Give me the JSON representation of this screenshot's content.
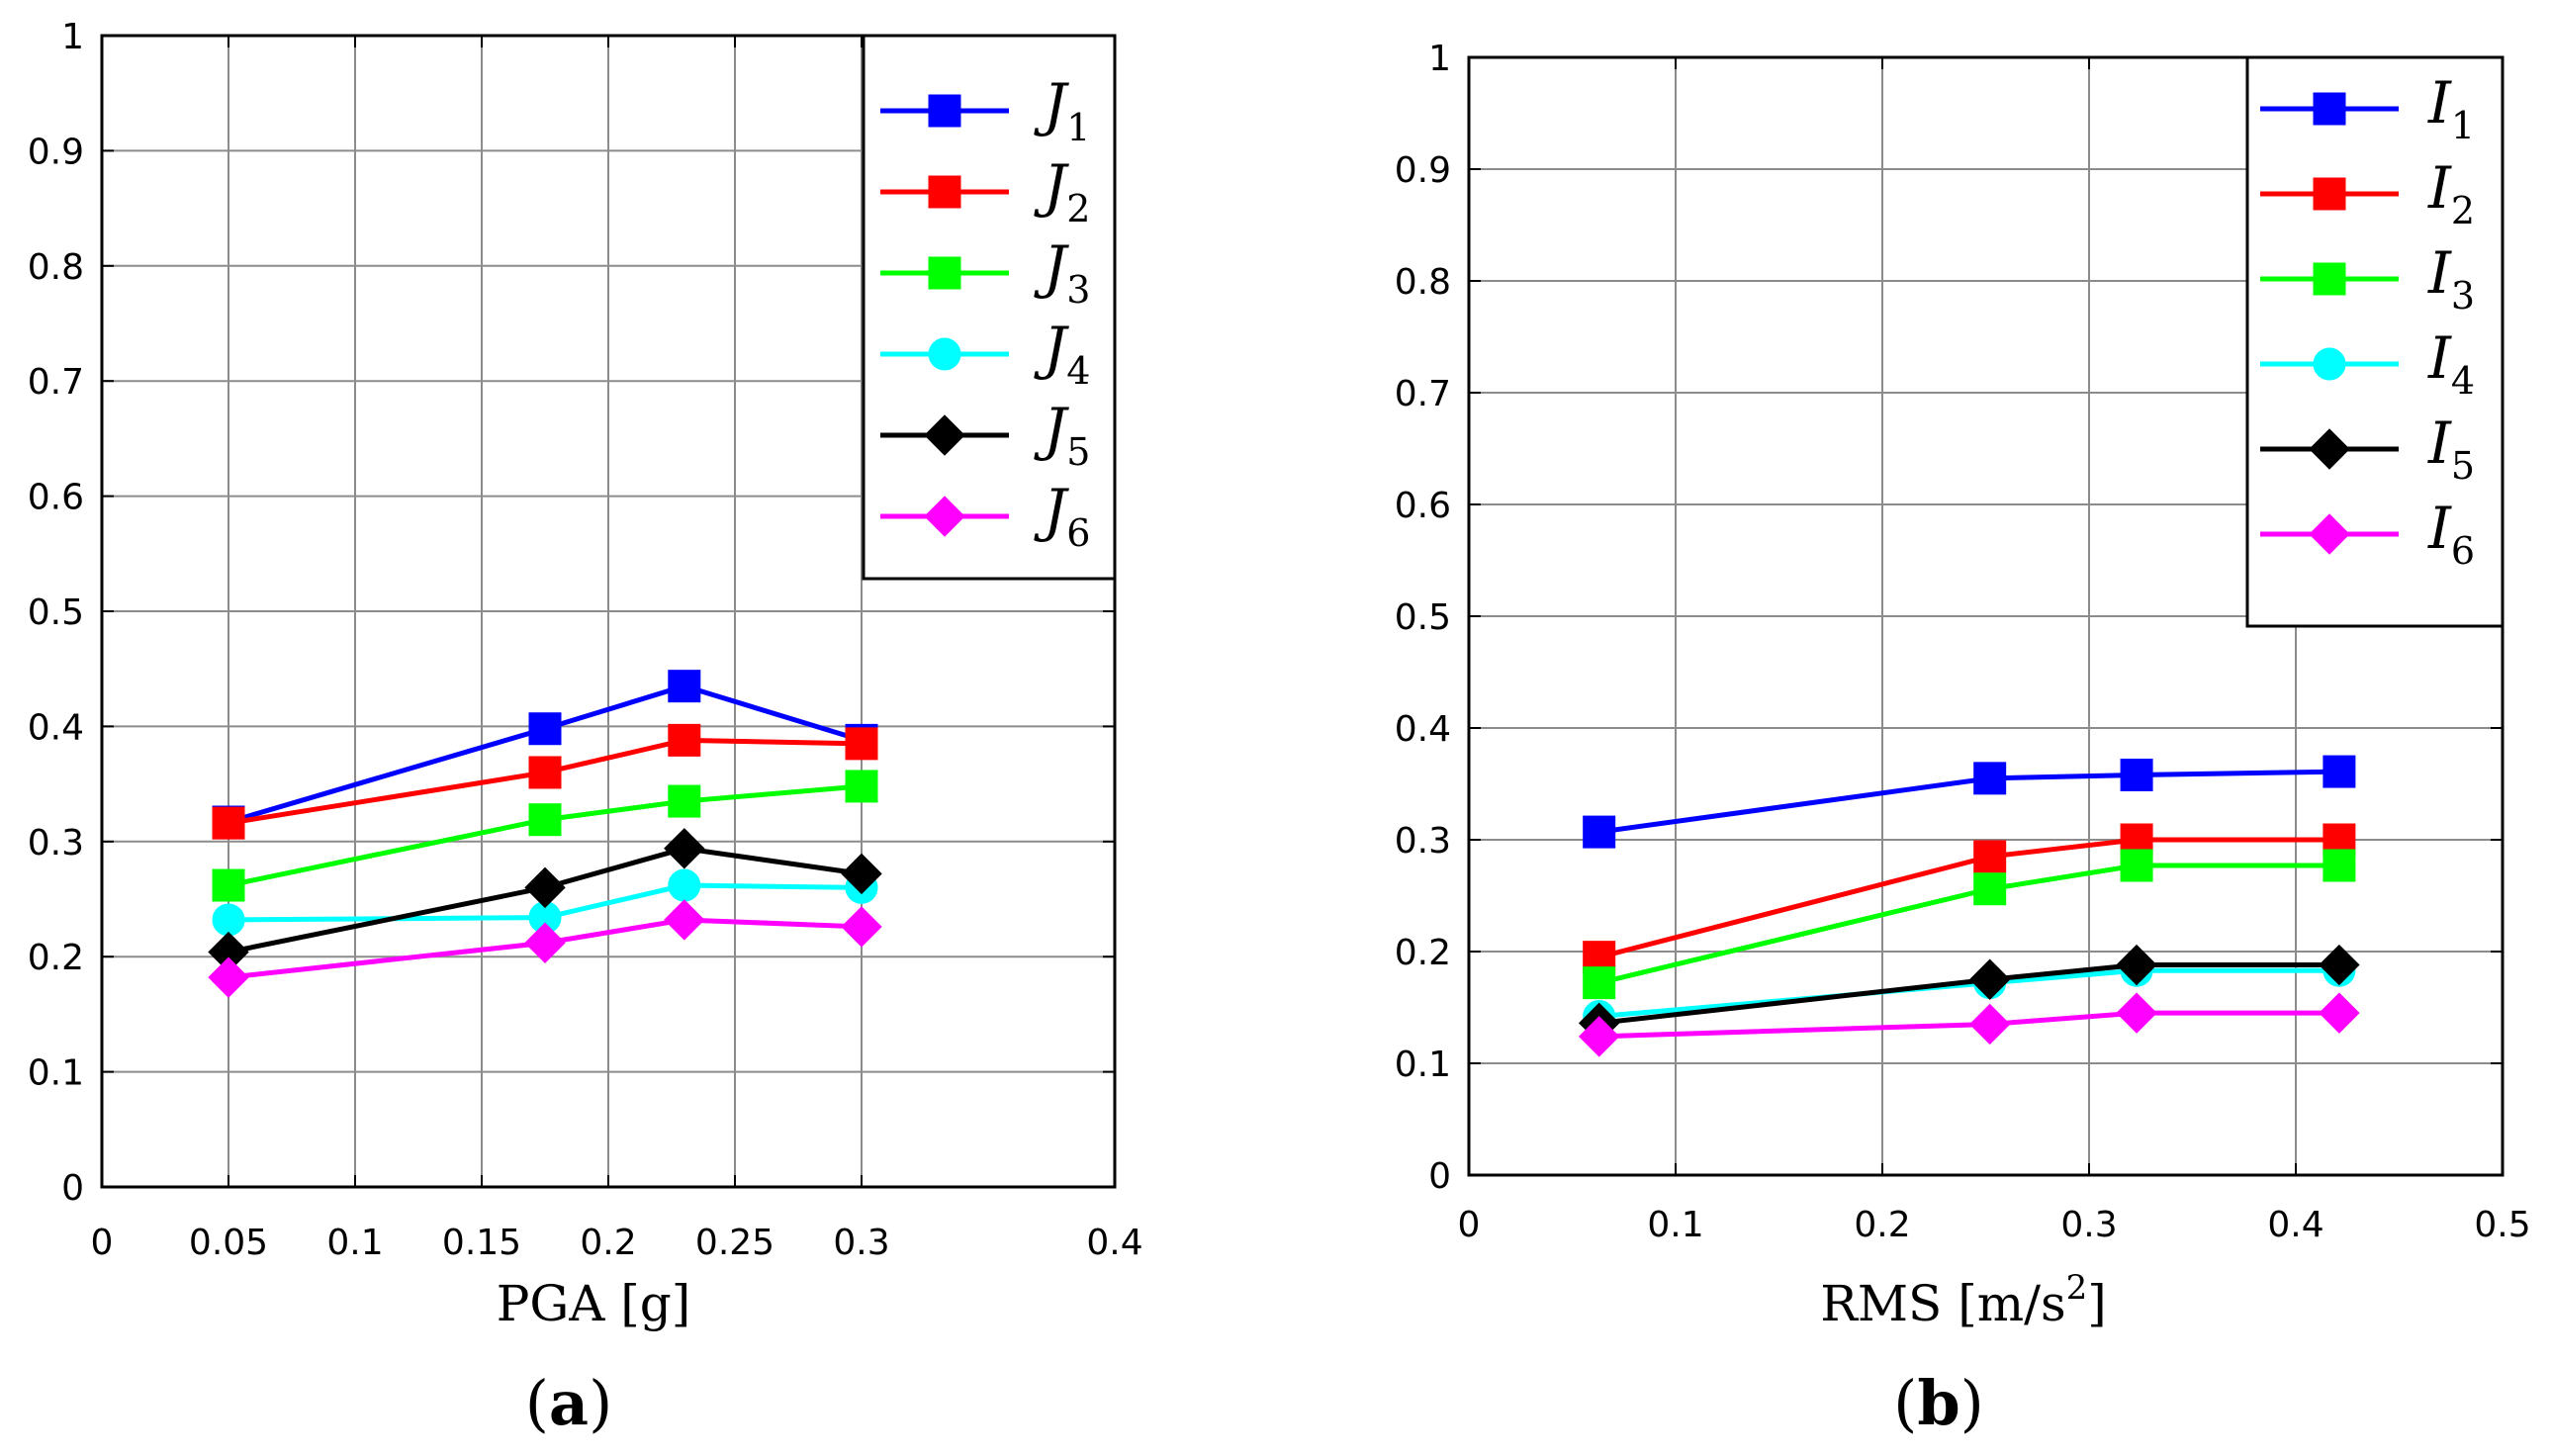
{
  "chart_data": [
    {
      "id": "a",
      "type": "line",
      "panel_label": {
        "open": "(",
        "letter": "a",
        "close": ")"
      },
      "xlabel": "PGA [g]",
      "ylabel": "",
      "xlim": [
        0,
        0.4
      ],
      "ylim": [
        0,
        1
      ],
      "xticks": [
        "0",
        "0.05",
        "0.1",
        "0.15",
        "0.2",
        "0.25",
        "0.3",
        "0.4"
      ],
      "xtick_values": [
        0,
        0.05,
        0.1,
        0.15,
        0.2,
        0.25,
        0.3,
        0.4
      ],
      "yticks": [
        "0",
        "0.1",
        "0.2",
        "0.3",
        "0.4",
        "0.5",
        "0.6",
        "0.7",
        "0.8",
        "0.9",
        "1"
      ],
      "ytick_values": [
        0,
        0.1,
        0.2,
        0.3,
        0.4,
        0.5,
        0.6,
        0.7,
        0.8,
        0.9,
        1
      ],
      "grid": true,
      "legend_position": "top-right",
      "x": [
        0.05,
        0.175,
        0.23,
        0.3
      ],
      "series": [
        {
          "name": "J",
          "sub": "1",
          "color": "#0000ff",
          "marker": "square",
          "values": [
            0.317,
            0.398,
            0.435,
            0.388
          ]
        },
        {
          "name": "J",
          "sub": "2",
          "color": "#ff0000",
          "marker": "square",
          "values": [
            0.316,
            0.36,
            0.388,
            0.385
          ]
        },
        {
          "name": "J",
          "sub": "3",
          "color": "#00ff00",
          "marker": "square",
          "values": [
            0.262,
            0.319,
            0.335,
            0.348
          ]
        },
        {
          "name": "J",
          "sub": "4",
          "color": "#00ffff",
          "marker": "circle",
          "values": [
            0.232,
            0.234,
            0.262,
            0.26
          ]
        },
        {
          "name": "J",
          "sub": "5",
          "color": "#000000",
          "marker": "diamond",
          "values": [
            0.204,
            0.26,
            0.294,
            0.272
          ]
        },
        {
          "name": "J",
          "sub": "6",
          "color": "#ff00ff",
          "marker": "diamond",
          "values": [
            0.182,
            0.212,
            0.232,
            0.226
          ]
        }
      ]
    },
    {
      "id": "b",
      "type": "line",
      "panel_label": {
        "open": "(",
        "letter": "b",
        "close": ")"
      },
      "xlabel": "RMS [m/s",
      "xlabel_sup": "2",
      "xlabel_end": "]",
      "ylabel": "",
      "xlim": [
        0,
        0.5
      ],
      "ylim": [
        0,
        1
      ],
      "xticks": [
        "0",
        "0.1",
        "0.2",
        "0.3",
        "0.4",
        "0.5"
      ],
      "xtick_values": [
        0,
        0.1,
        0.2,
        0.3,
        0.4,
        0.5
      ],
      "yticks": [
        "0",
        "0.1",
        "0.2",
        "0.3",
        "0.4",
        "0.5",
        "0.6",
        "0.7",
        "0.8",
        "0.9",
        "1"
      ],
      "ytick_values": [
        0,
        0.1,
        0.2,
        0.3,
        0.4,
        0.5,
        0.6,
        0.7,
        0.8,
        0.9,
        1
      ],
      "grid": true,
      "legend_position": "top-right",
      "x": [
        0.063,
        0.252,
        0.323,
        0.421
      ],
      "series": [
        {
          "name": "I",
          "sub": "1",
          "color": "#0000ff",
          "marker": "square",
          "values": [
            0.307,
            0.355,
            0.358,
            0.361
          ]
        },
        {
          "name": "I",
          "sub": "2",
          "color": "#ff0000",
          "marker": "square",
          "values": [
            0.195,
            0.285,
            0.3,
            0.3
          ]
        },
        {
          "name": "I",
          "sub": "3",
          "color": "#00ff00",
          "marker": "square",
          "values": [
            0.172,
            0.256,
            0.277,
            0.277
          ]
        },
        {
          "name": "I",
          "sub": "4",
          "color": "#00ffff",
          "marker": "circle",
          "values": [
            0.142,
            0.172,
            0.183,
            0.183
          ]
        },
        {
          "name": "I",
          "sub": "5",
          "color": "#000000",
          "marker": "diamond",
          "values": [
            0.136,
            0.175,
            0.188,
            0.188
          ]
        },
        {
          "name": "I",
          "sub": "6",
          "color": "#ff00ff",
          "marker": "diamond",
          "values": [
            0.124,
            0.135,
            0.145,
            0.145
          ]
        }
      ]
    }
  ]
}
